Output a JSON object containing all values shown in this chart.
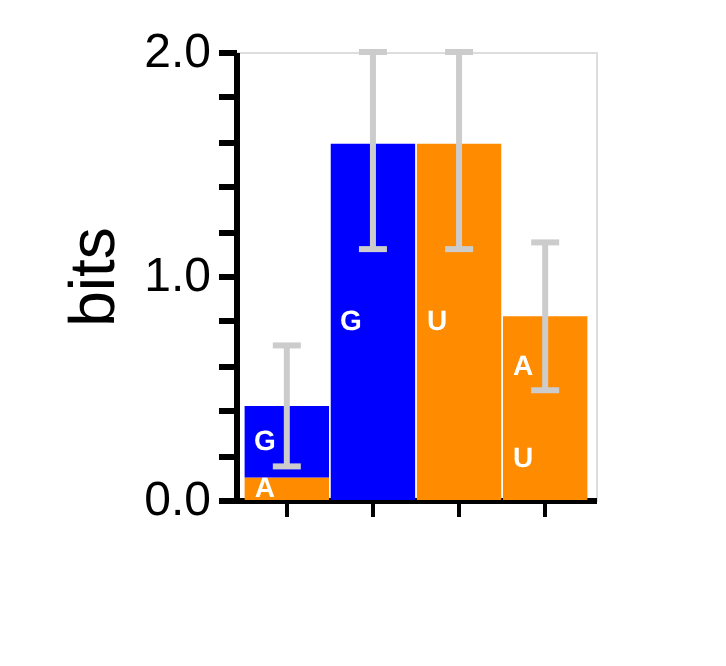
{
  "chart_data": {
    "type": "bar",
    "stacked": true,
    "ylabel": "bits",
    "categories": [
      null,
      null,
      null,
      null
    ],
    "series": [
      {
        "colors": [
          "#ff8c00",
          "#0000ff",
          "#ff8c00",
          "#ff8c00"
        ],
        "values": [
          0.1,
          1.59,
          1.59,
          0.37
        ],
        "value_labels": [
          "A",
          "G",
          "U",
          "U"
        ],
        "errors": [
          null,
          [
            1.12,
            2.0
          ],
          [
            1.12,
            2.0
          ],
          null
        ]
      },
      {
        "colors": [
          "#0000ff",
          null,
          null,
          "#ff8c00"
        ],
        "values": [
          0.32,
          null,
          null,
          0.45
        ],
        "value_labels": [
          "G",
          null,
          null,
          "A"
        ],
        "errors": [
          [
            0.15,
            0.69
          ],
          null,
          null,
          [
            0.49,
            1.15
          ]
        ]
      }
    ],
    "ylim": [
      0,
      2.0
    ],
    "yticks": [
      {
        "value": 0,
        "label": "0.0"
      },
      {
        "value": 0.2,
        "label": null
      },
      {
        "value": 0.4,
        "label": null
      },
      {
        "value": 0.6,
        "label": null
      },
      {
        "value": 0.8,
        "label": null
      },
      {
        "value": 1.0,
        "label": "1.0"
      },
      {
        "value": 1.2,
        "label": null
      },
      {
        "value": 1.4,
        "label": null
      },
      {
        "value": 1.6,
        "label": null
      },
      {
        "value": 1.8,
        "label": null
      },
      {
        "value": 2.0,
        "label": "2.0"
      }
    ],
    "tick_labels": "y",
    "grid": false
  }
}
